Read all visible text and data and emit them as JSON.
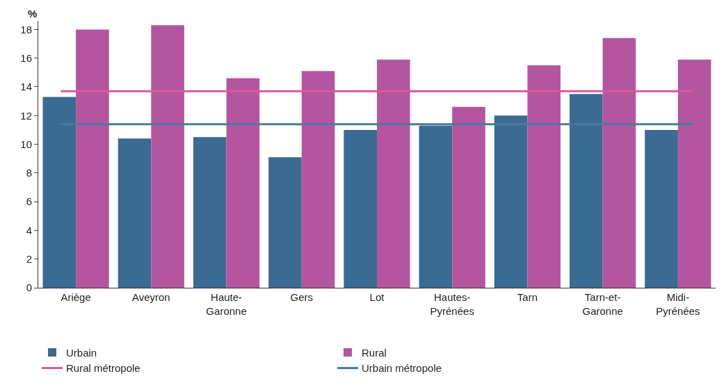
{
  "chart_data": {
    "type": "bar",
    "ylabel": "%",
    "categories": [
      "Ariège",
      "Aveyron",
      "Haute-Garonne",
      "Gers",
      "Lot",
      "Hautes-Pyrénées",
      "Tarn",
      "Tarn-et-Garonne",
      "Midi-Pyrénées"
    ],
    "series": [
      {
        "name": "Urbain",
        "color": "#3b6a93",
        "values": [
          13.3,
          10.4,
          10.5,
          9.1,
          11.0,
          11.3,
          12.0,
          13.5,
          11.0
        ]
      },
      {
        "name": "Rural",
        "color": "#b4569f",
        "values": [
          18.0,
          18.3,
          14.6,
          15.1,
          15.9,
          12.6,
          15.5,
          17.4,
          15.9
        ]
      }
    ],
    "ref_lines": [
      {
        "axis": "y",
        "value": 13.7,
        "label": "Rural métropole",
        "color": "#d65a9e"
      },
      {
        "axis": "y",
        "value": 11.4,
        "label": "Urbain métropole",
        "color": "#4a7aa3"
      }
    ],
    "ylim": [
      0,
      18.6
    ],
    "yticks": [
      0,
      2,
      4,
      6,
      8,
      10,
      12,
      14,
      16,
      18
    ],
    "legend": "bottom"
  }
}
